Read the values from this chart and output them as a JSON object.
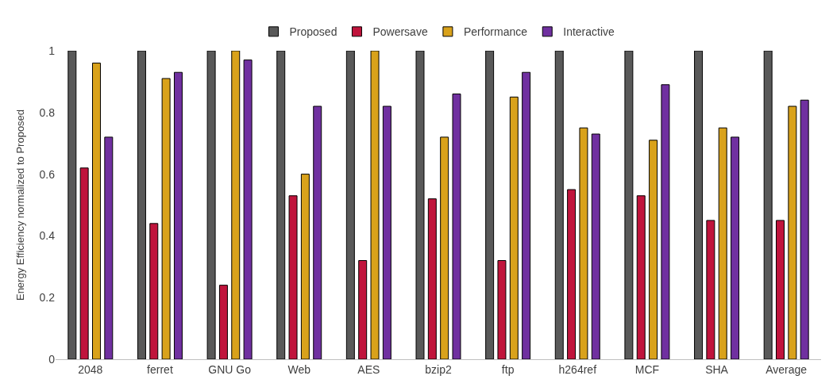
{
  "chart_data": {
    "type": "bar",
    "ylabel": "Energy Efficiency normalized to Proposed",
    "categories": [
      "2048",
      "ferret",
      "GNU Go",
      "Web",
      "AES",
      "bzip2",
      "ftp",
      "h264ref",
      "MCF",
      "SHA",
      "Average"
    ],
    "series": [
      {
        "name": "Proposed",
        "color": "#595959",
        "values": [
          1,
          1,
          1,
          1,
          1,
          1,
          1,
          1,
          1,
          1,
          1
        ]
      },
      {
        "name": "Powersave",
        "color": "#c0143c",
        "values": [
          0.62,
          0.44,
          0.24,
          0.53,
          0.32,
          0.52,
          0.32,
          0.55,
          0.53,
          0.45,
          0.45
        ]
      },
      {
        "name": "Performance",
        "color": "#d9a21b",
        "values": [
          0.96,
          0.91,
          1.0,
          0.6,
          1.0,
          0.72,
          0.85,
          0.75,
          0.71,
          0.75,
          0.82
        ]
      },
      {
        "name": "Interactive",
        "color": "#7030a0",
        "values": [
          0.72,
          0.93,
          0.97,
          0.82,
          0.82,
          0.86,
          0.93,
          0.73,
          0.89,
          0.72,
          0.84
        ]
      }
    ],
    "ylim": [
      0,
      1
    ],
    "yticks": [
      0,
      0.2,
      0.4,
      0.6,
      0.8,
      1
    ],
    "legend": "top"
  }
}
